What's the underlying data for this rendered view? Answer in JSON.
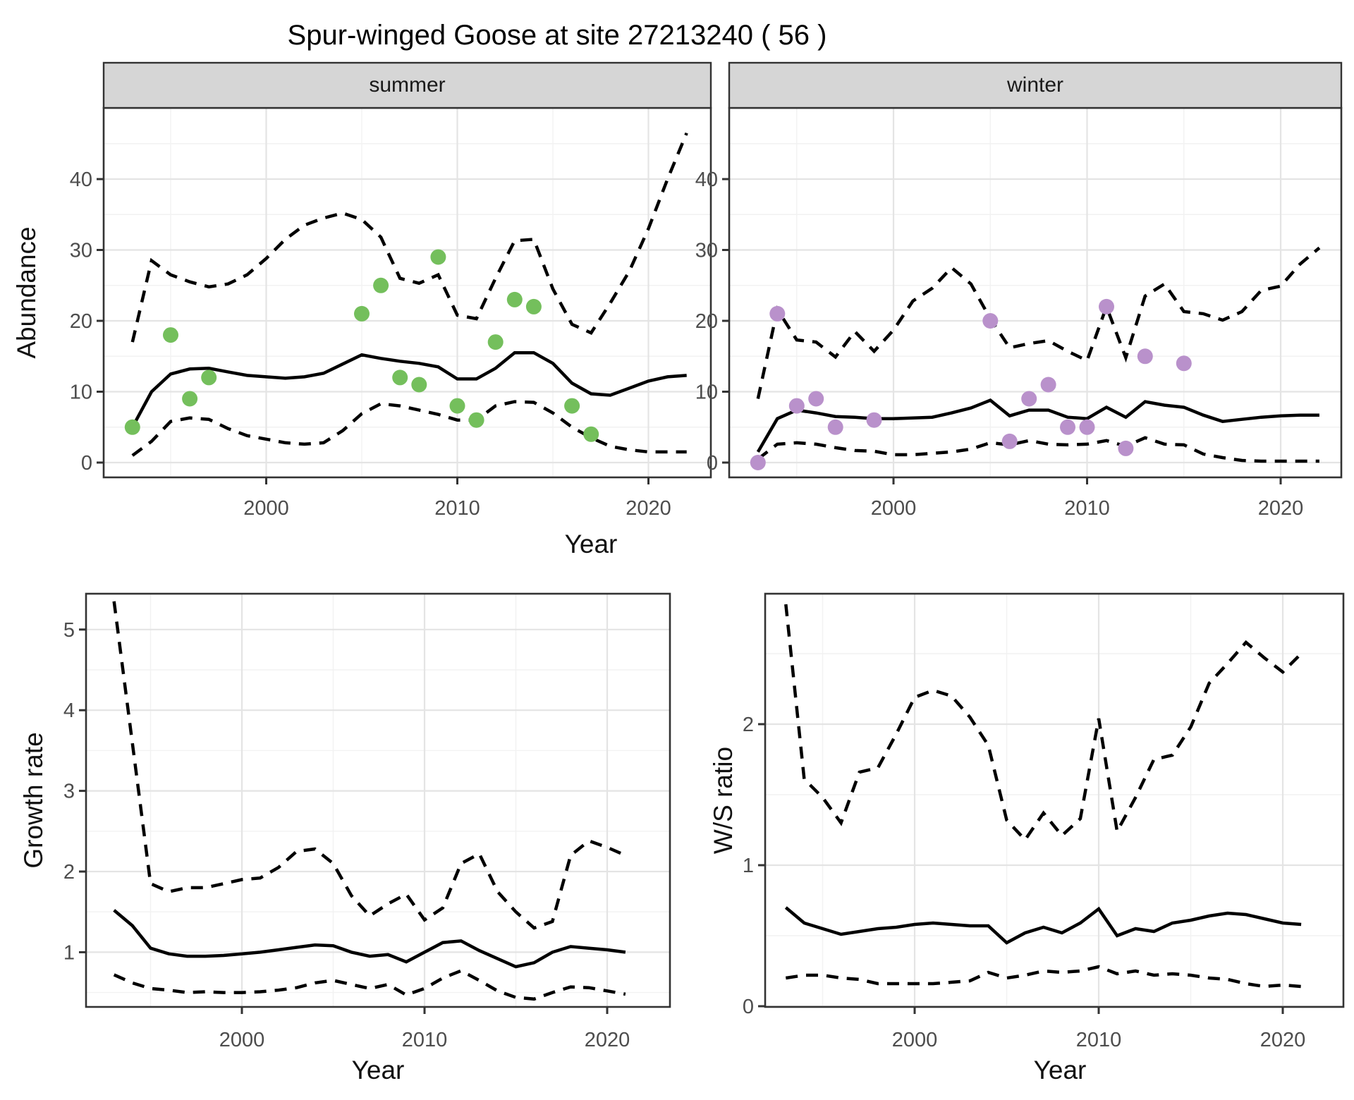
{
  "figure": {
    "title": "Spur-winged Goose at site 27213240 ( 56 )"
  },
  "chart_data": [
    {
      "id": "abundance_summer",
      "type": "line",
      "facet": "summer",
      "xlabel": "Year",
      "ylabel": "Abundance",
      "x_ticks": [
        2000,
        2010,
        2020
      ],
      "y_ticks": [
        0,
        10,
        20,
        30,
        40
      ],
      "xlim": [
        1991.5,
        2023.3
      ],
      "ylim": [
        -2.5,
        49.9
      ],
      "grid": true,
      "years": [
        1993,
        1994,
        1995,
        1996,
        1997,
        1998,
        1999,
        2000,
        2001,
        2002,
        2003,
        2004,
        2005,
        2006,
        2007,
        2008,
        2009,
        2010,
        2011,
        2012,
        2013,
        2014,
        2015,
        2016,
        2017,
        2018,
        2019,
        2020,
        2021,
        2022
      ],
      "series": [
        {
          "name": "mean",
          "style": "solid",
          "values": [
            5.0,
            10.0,
            12.5,
            13.2,
            13.3,
            12.8,
            12.3,
            12.1,
            11.9,
            12.1,
            12.6,
            13.9,
            15.2,
            14.7,
            14.3,
            14.0,
            13.5,
            11.8,
            11.8,
            13.3,
            15.5,
            15.5,
            14.0,
            11.2,
            9.7,
            9.5,
            10.5,
            11.5,
            12.1,
            12.3
          ]
        },
        {
          "name": "upper_95ci",
          "style": "dashed",
          "values": [
            17.0,
            28.5,
            26.5,
            25.5,
            24.8,
            25.2,
            26.5,
            28.8,
            31.5,
            33.5,
            34.5,
            35.2,
            34.3,
            31.8,
            26.0,
            25.3,
            26.5,
            20.8,
            20.3,
            26.0,
            31.3,
            31.5,
            24.5,
            19.5,
            18.3,
            22.5,
            27.0,
            33.0,
            40.0,
            46.5
          ]
        },
        {
          "name": "lower_95ci",
          "style": "dashed",
          "values": [
            1.0,
            3.0,
            5.8,
            6.3,
            6.1,
            4.8,
            3.8,
            3.3,
            2.8,
            2.6,
            2.8,
            4.5,
            6.9,
            8.3,
            8.0,
            7.4,
            6.8,
            6.0,
            6.0,
            8.0,
            8.6,
            8.5,
            7.0,
            5.0,
            3.5,
            2.3,
            1.8,
            1.5,
            1.5,
            1.5
          ]
        }
      ],
      "points": {
        "name": "observed-summer-counts",
        "color": "#74bf5c",
        "data": [
          [
            1993,
            5
          ],
          [
            1995,
            18
          ],
          [
            1996,
            9
          ],
          [
            1997,
            12
          ],
          [
            2005,
            21
          ],
          [
            2006,
            25
          ],
          [
            2007,
            12
          ],
          [
            2008,
            11
          ],
          [
            2009,
            29
          ],
          [
            2010,
            8
          ],
          [
            2011,
            6
          ],
          [
            2012,
            17
          ],
          [
            2013,
            23
          ],
          [
            2014,
            22
          ],
          [
            2016,
            8
          ],
          [
            2017,
            4
          ]
        ]
      }
    },
    {
      "id": "abundance_winter",
      "type": "line",
      "facet": "winter",
      "xlabel": "Year",
      "ylabel": "Abundance",
      "x_ticks": [
        2000,
        2010,
        2020
      ],
      "y_ticks": [
        0,
        10,
        20,
        30,
        40
      ],
      "xlim": [
        1991.5,
        2023.1
      ],
      "ylim": [
        -2.5,
        49.9
      ],
      "grid": true,
      "years": [
        1993,
        1994,
        1995,
        1996,
        1997,
        1998,
        1999,
        2000,
        2001,
        2002,
        2003,
        2004,
        2005,
        2006,
        2007,
        2008,
        2009,
        2010,
        2011,
        2012,
        2013,
        2014,
        2015,
        2016,
        2017,
        2018,
        2019,
        2020,
        2021,
        2022
      ],
      "series": [
        {
          "name": "mean",
          "style": "solid",
          "values": [
            1.5,
            6.2,
            7.4,
            7.0,
            6.5,
            6.4,
            6.2,
            6.2,
            6.3,
            6.4,
            7.0,
            7.7,
            8.8,
            6.6,
            7.4,
            7.4,
            6.4,
            6.2,
            7.8,
            6.4,
            8.6,
            8.1,
            7.8,
            6.7,
            5.8,
            6.1,
            6.4,
            6.6,
            6.7,
            6.7
          ]
        },
        {
          "name": "upper_95ci",
          "style": "dashed",
          "values": [
            9.0,
            21.6,
            17.3,
            17.0,
            14.9,
            18.5,
            15.7,
            18.7,
            22.8,
            24.6,
            27.5,
            25.2,
            20.3,
            16.2,
            16.8,
            17.2,
            15.7,
            14.4,
            22.0,
            14.8,
            23.5,
            25.2,
            21.3,
            21.0,
            20.1,
            21.3,
            24.3,
            24.9,
            28.0,
            30.3
          ]
        },
        {
          "name": "lower_95ci",
          "style": "dashed",
          "values": [
            0.5,
            2.6,
            2.8,
            2.6,
            2.1,
            1.7,
            1.6,
            1.1,
            1.1,
            1.3,
            1.5,
            1.9,
            2.8,
            2.5,
            3.1,
            2.6,
            2.5,
            2.6,
            3.1,
            2.3,
            3.5,
            2.6,
            2.5,
            1.2,
            0.7,
            0.3,
            0.2,
            0.2,
            0.2,
            0.2
          ]
        }
      ],
      "points": {
        "name": "observed-winter-counts",
        "color": "#b991cb",
        "data": [
          [
            1993,
            0
          ],
          [
            1994,
            21
          ],
          [
            1995,
            8
          ],
          [
            1996,
            9
          ],
          [
            1997,
            5
          ],
          [
            1999,
            6
          ],
          [
            2005,
            20
          ],
          [
            2006,
            3
          ],
          [
            2007,
            9
          ],
          [
            2008,
            11
          ],
          [
            2009,
            5
          ],
          [
            2010,
            5
          ],
          [
            2011,
            22
          ],
          [
            2012,
            2
          ],
          [
            2013,
            15
          ],
          [
            2015,
            14
          ]
        ]
      }
    },
    {
      "id": "growth_rate",
      "type": "line",
      "facet": null,
      "xlabel": "Year",
      "ylabel": "Growth rate",
      "x_ticks": [
        2000,
        2010,
        2020
      ],
      "y_ticks": [
        1,
        2,
        3,
        4,
        5
      ],
      "xlim": [
        1991.5,
        2023.4
      ],
      "ylim": [
        0.3,
        5.45
      ],
      "grid": true,
      "years": [
        1993,
        1994,
        1995,
        1996,
        1997,
        1998,
        1999,
        2000,
        2001,
        2002,
        2003,
        2004,
        2005,
        2006,
        2007,
        2008,
        2009,
        2010,
        2011,
        2012,
        2013,
        2014,
        2015,
        2016,
        2017,
        2018,
        2019,
        2020,
        2021
      ],
      "series": [
        {
          "name": "mean",
          "style": "solid",
          "values": [
            1.52,
            1.33,
            1.05,
            0.98,
            0.95,
            0.95,
            0.96,
            0.98,
            1.0,
            1.03,
            1.06,
            1.09,
            1.08,
            1.0,
            0.95,
            0.97,
            0.88,
            1.0,
            1.12,
            1.14,
            1.02,
            0.92,
            0.82,
            0.87,
            1.0,
            1.07,
            1.05,
            1.03,
            1.0
          ]
        },
        {
          "name": "upper_95ci",
          "style": "dashed",
          "values": [
            5.35,
            3.6,
            1.85,
            1.75,
            1.8,
            1.8,
            1.85,
            1.9,
            1.92,
            2.05,
            2.25,
            2.28,
            2.1,
            1.7,
            1.45,
            1.6,
            1.72,
            1.4,
            1.55,
            2.1,
            2.22,
            1.75,
            1.5,
            1.3,
            1.38,
            2.2,
            2.38,
            2.3,
            2.2
          ]
        },
        {
          "name": "lower_95ci",
          "style": "dashed",
          "values": [
            0.72,
            0.62,
            0.55,
            0.53,
            0.5,
            0.51,
            0.5,
            0.5,
            0.51,
            0.53,
            0.56,
            0.62,
            0.65,
            0.6,
            0.55,
            0.6,
            0.47,
            0.55,
            0.68,
            0.77,
            0.65,
            0.52,
            0.44,
            0.42,
            0.5,
            0.57,
            0.56,
            0.52,
            0.48
          ]
        }
      ],
      "points": null
    },
    {
      "id": "ws_ratio",
      "type": "line",
      "facet": null,
      "xlabel": "Year",
      "ylabel": "W/S ratio",
      "x_ticks": [
        2000,
        2010,
        2020
      ],
      "y_ticks": [
        0,
        1,
        2
      ],
      "xlim": [
        1992.0,
        2023.3
      ],
      "ylim": [
        0,
        2.93
      ],
      "grid": true,
      "years": [
        1993,
        1994,
        1995,
        1996,
        1997,
        1998,
        1999,
        2000,
        2001,
        2002,
        2003,
        2004,
        2005,
        2006,
        2007,
        2008,
        2009,
        2010,
        2011,
        2012,
        2013,
        2014,
        2015,
        2016,
        2017,
        2018,
        2019,
        2020,
        2021
      ],
      "series": [
        {
          "name": "mean",
          "style": "solid",
          "values": [
            0.7,
            0.59,
            0.55,
            0.51,
            0.53,
            0.55,
            0.56,
            0.58,
            0.59,
            0.58,
            0.57,
            0.57,
            0.45,
            0.52,
            0.56,
            0.52,
            0.59,
            0.69,
            0.5,
            0.55,
            0.53,
            0.59,
            0.61,
            0.64,
            0.66,
            0.65,
            0.62,
            0.59,
            0.58
          ]
        },
        {
          "name": "upper_95ci",
          "style": "dashed",
          "values": [
            2.85,
            1.61,
            1.48,
            1.3,
            1.66,
            1.69,
            1.93,
            2.19,
            2.24,
            2.2,
            2.05,
            1.85,
            1.32,
            1.18,
            1.37,
            1.21,
            1.33,
            2.04,
            1.24,
            1.48,
            1.75,
            1.78,
            1.98,
            2.29,
            2.43,
            2.58,
            2.47,
            2.37,
            2.5
          ]
        },
        {
          "name": "lower_95ci",
          "style": "dashed",
          "values": [
            0.2,
            0.22,
            0.22,
            0.2,
            0.19,
            0.16,
            0.16,
            0.16,
            0.16,
            0.17,
            0.18,
            0.24,
            0.2,
            0.22,
            0.25,
            0.24,
            0.25,
            0.28,
            0.23,
            0.25,
            0.22,
            0.23,
            0.22,
            0.2,
            0.19,
            0.16,
            0.14,
            0.15,
            0.14
          ]
        }
      ],
      "points": null
    }
  ],
  "style": {
    "summer_point_color": "#74bf5c",
    "winter_point_color": "#b991cb",
    "line_color": "#000000",
    "strip_fill": "#d6d6d6",
    "panel_border": "#333333",
    "grid_major": "#e4e4e4",
    "grid_minor": "#f2f2f2",
    "tick_label_color": "#4d4d4d"
  }
}
